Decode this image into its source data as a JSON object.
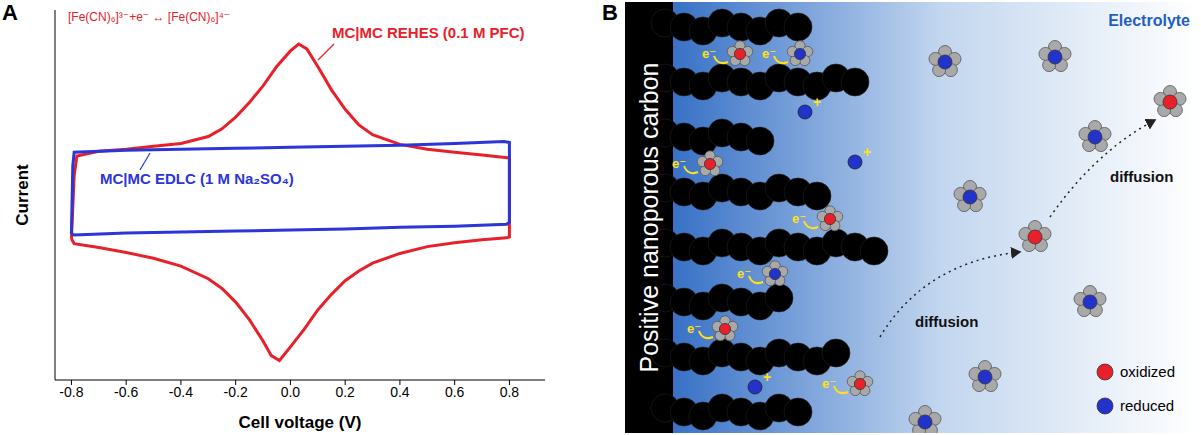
{
  "chart_data": {
    "type": "line",
    "panel_label": "A",
    "x_label": "Cell voltage (V)",
    "y_label": "Current",
    "annotations": [
      "[Fe(CN)₆]³⁻+e⁻ ↔ [Fe(CN)₆]⁴⁻"
    ],
    "xlim": [
      -0.86,
      0.93
    ],
    "xticks": [
      -0.8,
      -0.6,
      -0.4,
      -0.2,
      {
        "value": 0,
        "label": "0.0"
      },
      0.2,
      0.4,
      0.6,
      0.8
    ],
    "ylim": [
      -1.9,
      1.9
    ],
    "tick_labels": "x",
    "grid": false,
    "series": [
      {
        "name": "MC|MC REHES (0.1 M PFC)",
        "color": "#e8202a",
        "x": [
          -0.8,
          -0.79,
          -0.78,
          -0.7,
          -0.6,
          -0.5,
          -0.4,
          -0.3,
          -0.25,
          -0.2,
          -0.15,
          -0.1,
          -0.05,
          0,
          0.03,
          0.06,
          0.1,
          0.15,
          0.2,
          0.25,
          0.3,
          0.4,
          0.5,
          0.6,
          0.7,
          0.8,
          0.8,
          0.79,
          0.7,
          0.6,
          0.5,
          0.4,
          0.3,
          0.25,
          0.2,
          0.15,
          0.1,
          0.05,
          0,
          -0.04,
          -0.07,
          -0.1,
          -0.15,
          -0.2,
          -0.25,
          -0.3,
          -0.4,
          -0.5,
          -0.6,
          -0.7,
          -0.79,
          -0.8
        ],
        "values": [
          -0.45,
          0.2,
          0.4,
          0.45,
          0.47,
          0.5,
          0.53,
          0.6,
          0.68,
          0.8,
          0.95,
          1.12,
          1.32,
          1.48,
          1.55,
          1.5,
          1.32,
          1.08,
          0.88,
          0.72,
          0.62,
          0.52,
          0.47,
          0.44,
          0.41,
          0.38,
          -0.43,
          -0.44,
          -0.46,
          -0.49,
          -0.53,
          -0.6,
          -0.7,
          -0.78,
          -0.88,
          -1.02,
          -1.18,
          -1.38,
          -1.56,
          -1.7,
          -1.65,
          -1.5,
          -1.28,
          -1.1,
          -0.96,
          -0.86,
          -0.73,
          -0.65,
          -0.59,
          -0.54,
          -0.5,
          -0.45
        ]
      },
      {
        "name": "MC|MC EDLC (1 M Na₂SO₄)",
        "color": "#2b35d8",
        "x": [
          -0.8,
          -0.795,
          -0.79,
          -0.6,
          -0.4,
          -0.2,
          0,
          0.2,
          0.4,
          0.6,
          0.78,
          0.8,
          0.8,
          0.79,
          0.6,
          0.4,
          0.2,
          0,
          -0.2,
          -0.4,
          -0.6,
          -0.79,
          -0.8
        ],
        "values": [
          -0.4,
          0.3,
          0.44,
          0.46,
          0.47,
          0.48,
          0.49,
          0.5,
          0.51,
          0.53,
          0.55,
          0.54,
          -0.28,
          -0.3,
          -0.32,
          -0.33,
          -0.35,
          -0.36,
          -0.37,
          -0.38,
          -0.39,
          -0.41,
          -0.4
        ]
      }
    ]
  },
  "diagram": {
    "panel_label": "B",
    "carbon_label": "Positive nanoporous carbon",
    "electrolyte_label": "Electrolyte",
    "arrow_labels": [
      "diffusion",
      "diffusion"
    ],
    "electron_label": "e⁻",
    "charge_label": "+",
    "key_items": [
      {
        "label": "oxidized",
        "color": "#e8202a"
      },
      {
        "label": "reduced",
        "color": "#2233cc"
      }
    ]
  }
}
